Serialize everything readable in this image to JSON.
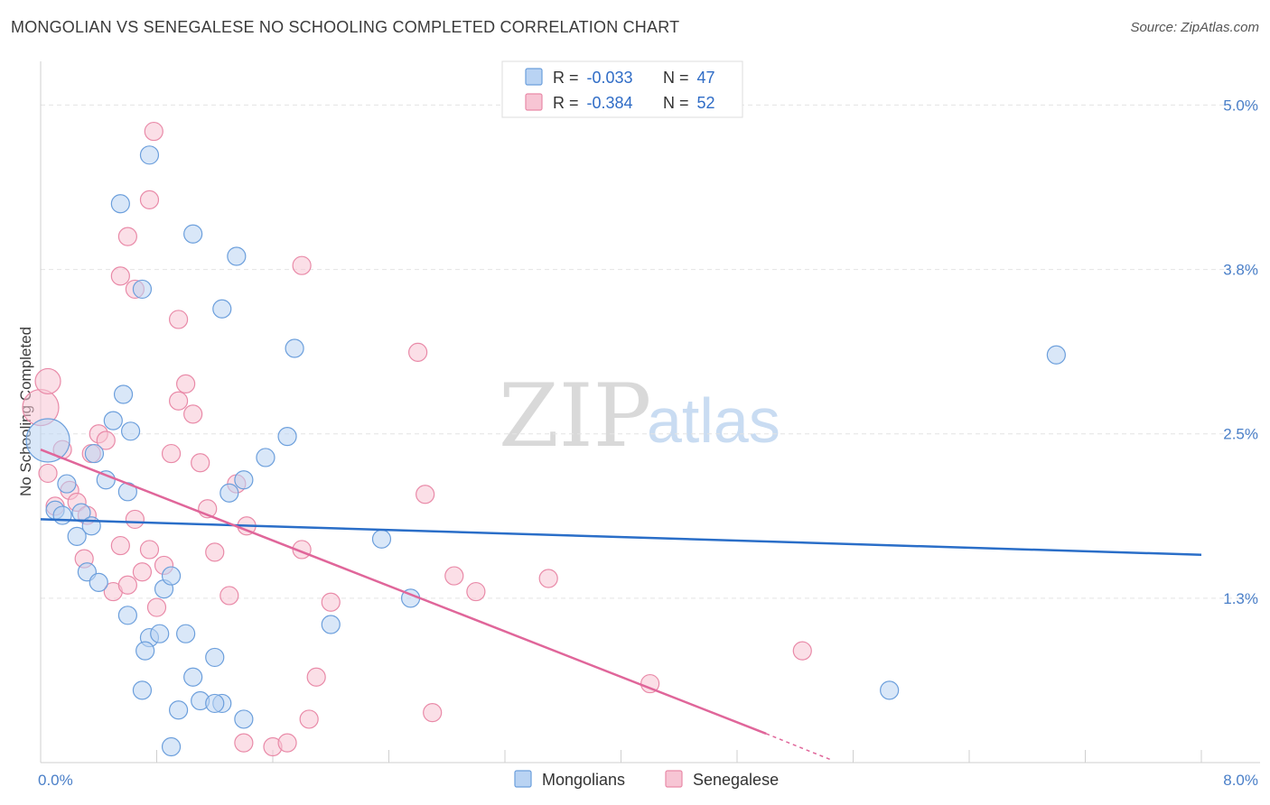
{
  "title": "MONGOLIAN VS SENEGALESE NO SCHOOLING COMPLETED CORRELATION CHART",
  "source": "Source: ZipAtlas.com",
  "watermark": {
    "part1": "ZIP",
    "part2": "atlas"
  },
  "colors": {
    "mongolians_fill": "#b9d3f3",
    "mongolians_stroke": "#6c9fdc",
    "mongolians_line": "#2a6ec8",
    "senegalese_fill": "#f7c5d4",
    "senegalese_stroke": "#e98aa8",
    "senegalese_line": "#e0669a",
    "grid": "#e4e4e4",
    "axis": "#cfcfcf",
    "tick_text": "#4a7fc8"
  },
  "legend": {
    "rows": [
      {
        "r_label": "R = ",
        "r_value": "-0.033",
        "n_label": "N = ",
        "n_value": "47"
      },
      {
        "r_label": "R = ",
        "r_value": "-0.384",
        "n_label": "N = ",
        "n_value": "52"
      }
    ]
  },
  "bottom_legend": [
    "Mongolians",
    "Senegalese"
  ],
  "chart_data": {
    "type": "scatter",
    "title": "MONGOLIAN VS SENEGALESE NO SCHOOLING COMPLETED CORRELATION CHART",
    "xlabel": "",
    "ylabel": "No Schooling Completed",
    "xlim": [
      0,
      8.0
    ],
    "ylim": [
      0,
      5.25
    ],
    "x_tick_labels": [
      "0.0%",
      "8.0%"
    ],
    "y_ticks": [
      1.25,
      2.5,
      3.75,
      5.0
    ],
    "y_tick_labels": [
      "1.3%",
      "2.5%",
      "3.8%",
      "5.0%"
    ],
    "grid": true,
    "legend_position": "top-center",
    "series": [
      {
        "name": "Mongolians",
        "R": -0.033,
        "N": 47,
        "trend": {
          "x": [
            0,
            8.0
          ],
          "y": [
            1.85,
            1.58
          ]
        },
        "points": [
          [
            0.05,
            2.45,
            24
          ],
          [
            0.1,
            1.92,
            10
          ],
          [
            0.15,
            1.88,
            10
          ],
          [
            0.18,
            2.12,
            10
          ],
          [
            0.28,
            1.9,
            10
          ],
          [
            0.35,
            1.8,
            10
          ],
          [
            0.25,
            1.72,
            10
          ],
          [
            0.32,
            1.45,
            10
          ],
          [
            0.4,
            1.37,
            10
          ],
          [
            0.37,
            2.35,
            10
          ],
          [
            0.45,
            2.15,
            10
          ],
          [
            0.5,
            2.6,
            10
          ],
          [
            0.57,
            2.8,
            10
          ],
          [
            0.6,
            2.06,
            10
          ],
          [
            0.62,
            2.52,
            10
          ],
          [
            0.6,
            1.12,
            10
          ],
          [
            0.75,
            0.95,
            10
          ],
          [
            0.7,
            0.55,
            10
          ],
          [
            0.72,
            0.85,
            10
          ],
          [
            0.82,
            0.98,
            10
          ],
          [
            0.85,
            1.32,
            10
          ],
          [
            0.9,
            1.42,
            10
          ],
          [
            0.95,
            0.4,
            10
          ],
          [
            1.0,
            0.98,
            10
          ],
          [
            1.05,
            0.65,
            10
          ],
          [
            1.1,
            0.47,
            10
          ],
          [
            1.2,
            0.8,
            10
          ],
          [
            1.25,
            0.45,
            10
          ],
          [
            1.2,
            0.45,
            10
          ],
          [
            1.4,
            0.33,
            10
          ],
          [
            1.3,
            2.05,
            10
          ],
          [
            1.4,
            2.15,
            10
          ],
          [
            1.55,
            2.32,
            10
          ],
          [
            1.7,
            2.48,
            10
          ],
          [
            2.0,
            1.05,
            10
          ],
          [
            1.75,
            3.15,
            10
          ],
          [
            1.25,
            3.45,
            10
          ],
          [
            1.05,
            4.02,
            10
          ],
          [
            0.55,
            4.25,
            10
          ],
          [
            0.75,
            4.62,
            10
          ],
          [
            0.7,
            3.6,
            10
          ],
          [
            0.9,
            0.12,
            10
          ],
          [
            1.35,
            3.85,
            10
          ],
          [
            2.35,
            1.7,
            10
          ],
          [
            2.55,
            1.25,
            10
          ],
          [
            5.85,
            0.55,
            10
          ],
          [
            7.0,
            3.1,
            10
          ]
        ]
      },
      {
        "name": "Senegalese",
        "R": -0.384,
        "N": 52,
        "trend": {
          "x": [
            0,
            5.0
          ],
          "y": [
            2.38,
            0.22
          ]
        },
        "trend_dashed": {
          "x": [
            5.0,
            5.45
          ],
          "y": [
            0.22,
            0.02
          ]
        },
        "points": [
          [
            0.0,
            2.7,
            20
          ],
          [
            0.05,
            2.9,
            14
          ],
          [
            0.1,
            1.95,
            10
          ],
          [
            0.15,
            2.38,
            10
          ],
          [
            0.2,
            2.07,
            10
          ],
          [
            0.25,
            1.98,
            10
          ],
          [
            0.3,
            1.55,
            10
          ],
          [
            0.32,
            1.88,
            10
          ],
          [
            0.35,
            2.35,
            10
          ],
          [
            0.4,
            2.5,
            10
          ],
          [
            0.45,
            2.45,
            10
          ],
          [
            0.5,
            1.3,
            10
          ],
          [
            0.55,
            1.65,
            10
          ],
          [
            0.6,
            1.35,
            10
          ],
          [
            0.65,
            1.85,
            10
          ],
          [
            0.7,
            1.45,
            10
          ],
          [
            0.75,
            1.62,
            10
          ],
          [
            0.8,
            1.18,
            10
          ],
          [
            0.85,
            1.5,
            10
          ],
          [
            0.9,
            2.35,
            10
          ],
          [
            0.95,
            2.75,
            10
          ],
          [
            1.0,
            2.88,
            10
          ],
          [
            1.05,
            2.65,
            10
          ],
          [
            1.1,
            2.28,
            10
          ],
          [
            1.15,
            1.93,
            10
          ],
          [
            1.2,
            1.6,
            10
          ],
          [
            1.3,
            1.27,
            10
          ],
          [
            1.4,
            0.15,
            10
          ],
          [
            1.35,
            2.12,
            10
          ],
          [
            1.42,
            1.8,
            10
          ],
          [
            1.6,
            0.12,
            10
          ],
          [
            1.7,
            0.15,
            10
          ],
          [
            1.8,
            1.62,
            10
          ],
          [
            1.85,
            0.33,
            10
          ],
          [
            1.9,
            0.65,
            10
          ],
          [
            2.0,
            1.22,
            10
          ],
          [
            0.55,
            3.7,
            10
          ],
          [
            0.6,
            4.0,
            10
          ],
          [
            0.65,
            3.6,
            10
          ],
          [
            0.75,
            4.28,
            10
          ],
          [
            0.95,
            3.37,
            10
          ],
          [
            0.78,
            4.8,
            10
          ],
          [
            1.8,
            3.78,
            10
          ],
          [
            2.6,
            3.12,
            10
          ],
          [
            2.65,
            2.04,
            10
          ],
          [
            2.7,
            0.38,
            10
          ],
          [
            2.85,
            1.42,
            10
          ],
          [
            3.0,
            1.3,
            10
          ],
          [
            3.5,
            1.4,
            10
          ],
          [
            4.2,
            0.6,
            10
          ],
          [
            5.25,
            0.85,
            10
          ],
          [
            0.05,
            2.2,
            10
          ]
        ]
      }
    ]
  }
}
